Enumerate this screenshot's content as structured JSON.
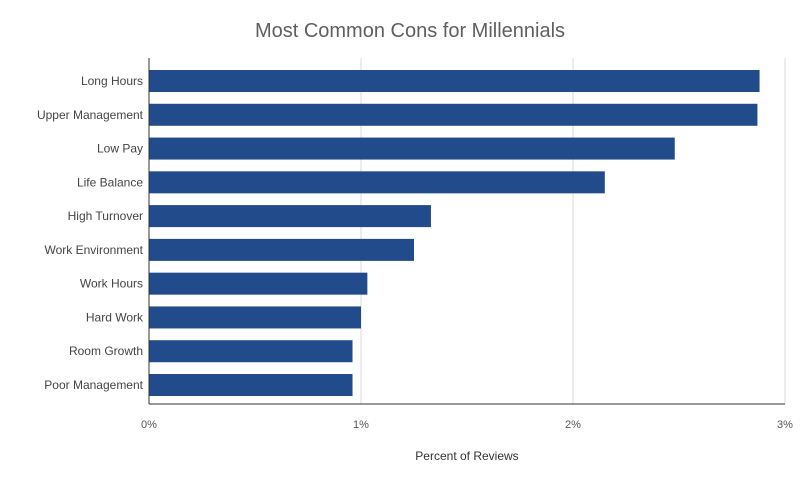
{
  "chart_data": {
    "type": "bar",
    "orientation": "horizontal",
    "title": "Most Common Cons for Millennials",
    "xlabel": "Percent of Reviews",
    "ylabel": "",
    "categories": [
      "Long Hours",
      "Upper Management",
      "Low Pay",
      "Life Balance",
      "High Turnover",
      "Work Environment",
      "Work Hours",
      "Hard Work",
      "Room Growth",
      "Poor Management"
    ],
    "values": [
      2.88,
      2.87,
      2.48,
      2.15,
      1.33,
      1.25,
      1.03,
      1.0,
      0.96,
      0.96
    ],
    "xlim": [
      0,
      3
    ],
    "ticks": [
      0,
      1,
      2,
      3
    ],
    "tick_labels": [
      "0%",
      "1%",
      "2%",
      "3%"
    ],
    "grid": true,
    "legend": "none",
    "colors": {
      "bar": "#224b8b",
      "grid": "#d9d9d9",
      "axis": "#333333"
    }
  }
}
